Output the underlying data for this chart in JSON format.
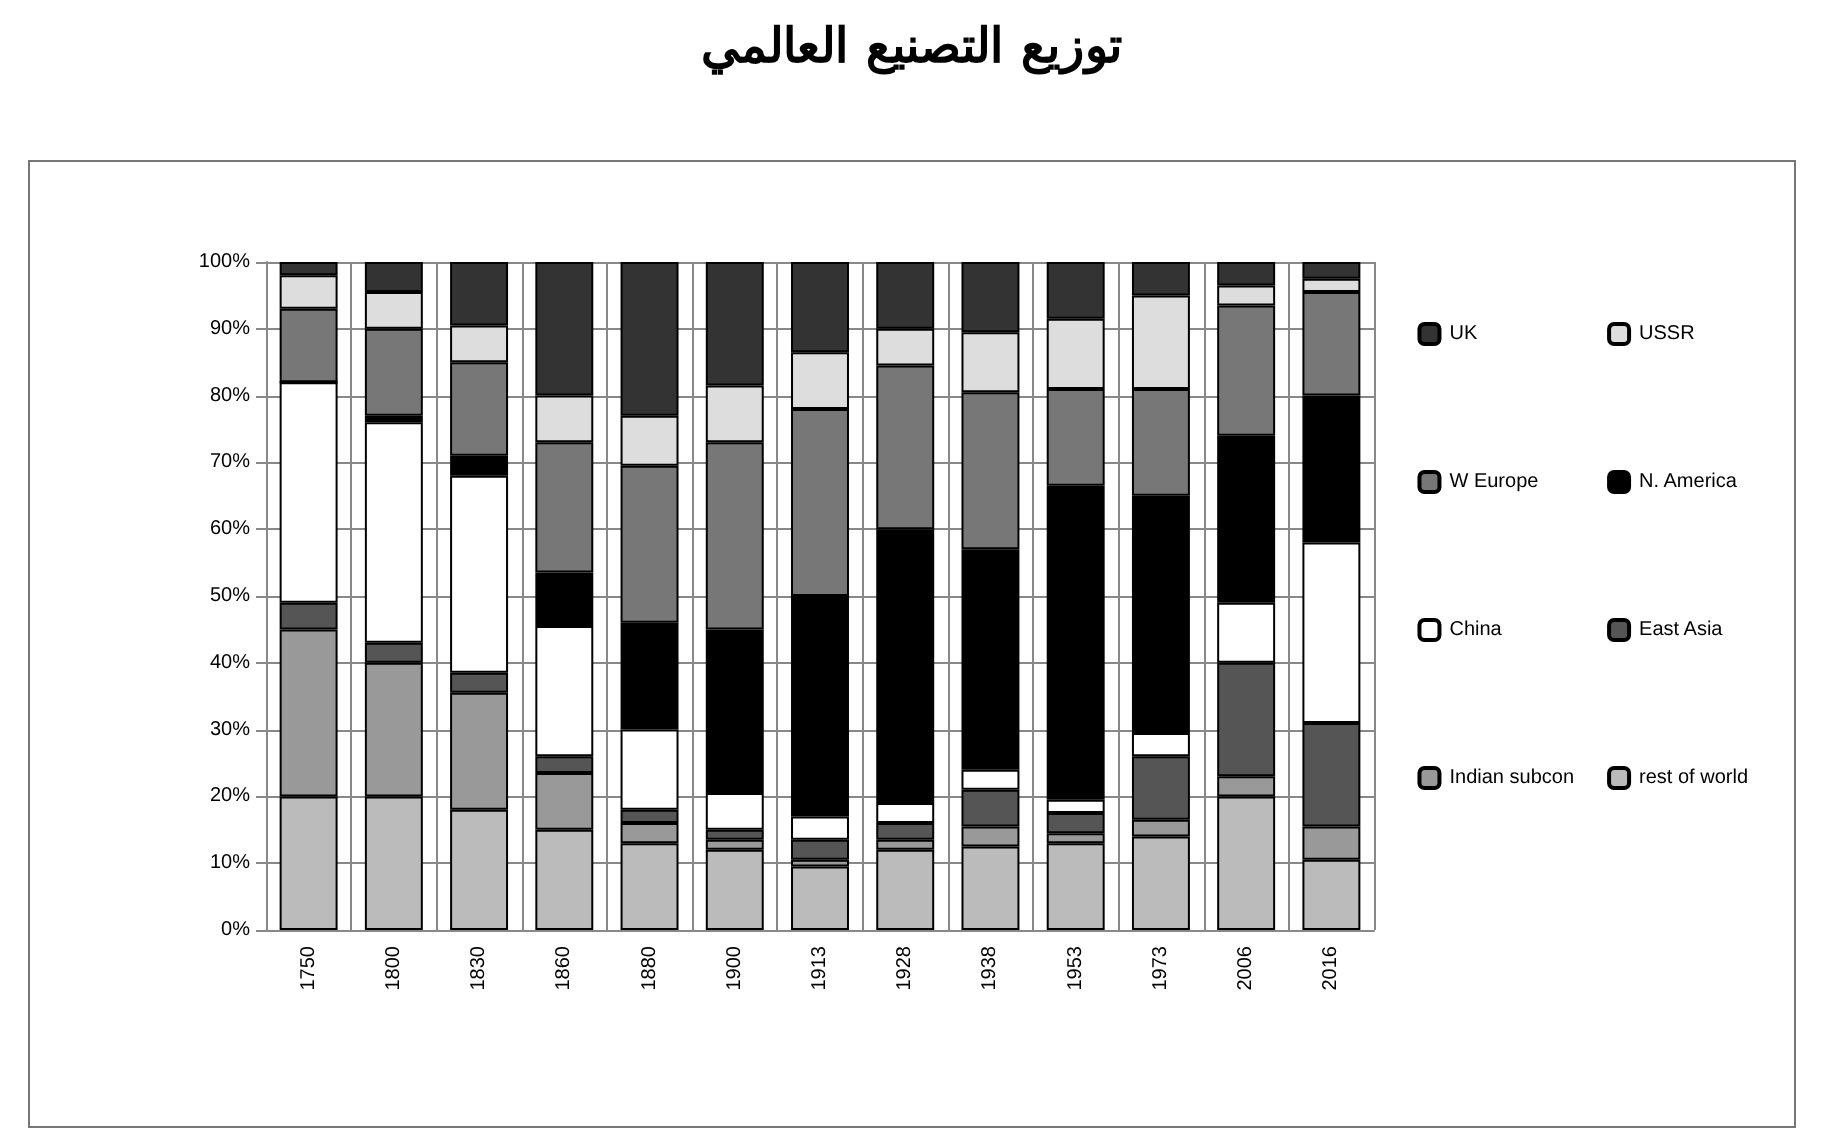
{
  "chart_data": {
    "type": "bar",
    "title": "توزيع التصنيع العالمي",
    "stacked": true,
    "grid": true,
    "legend": "right",
    "categories": [
      "1750",
      "1800",
      "1830",
      "1860",
      "1880",
      "1900",
      "1913",
      "1928",
      "1938",
      "1953",
      "1973",
      "2006",
      "2016"
    ],
    "ylim": [
      0,
      100
    ],
    "yticks": [
      {
        "value": 0,
        "label": "0%"
      },
      {
        "value": 10,
        "label": "10%"
      },
      {
        "value": 20,
        "label": "20%"
      },
      {
        "value": 30,
        "label": "30%"
      },
      {
        "value": 40,
        "label": "40%"
      },
      {
        "value": 50,
        "label": "50%"
      },
      {
        "value": 60,
        "label": "60%"
      },
      {
        "value": 70,
        "label": "70%"
      },
      {
        "value": 80,
        "label": "80%"
      },
      {
        "value": 90,
        "label": "90%"
      },
      {
        "value": 100,
        "label": "100%"
      }
    ],
    "series": [
      {
        "name": "rest of world",
        "color": "#bbbbbb",
        "values": [
          20,
          20,
          18,
          15,
          13,
          12,
          9.5,
          12,
          12.5,
          13,
          14,
          20,
          10.5
        ]
      },
      {
        "name": "Indian subcon",
        "color": "#999999",
        "values": [
          25,
          20,
          17.5,
          8.5,
          3,
          1.5,
          1,
          1.5,
          3,
          1.5,
          2.5,
          3,
          5
        ]
      },
      {
        "name": "East Asia",
        "color": "#555555",
        "values": [
          4,
          3,
          3,
          2.5,
          2,
          1.5,
          3,
          2.5,
          5.5,
          3,
          9.5,
          17,
          15.5
        ]
      },
      {
        "name": "China",
        "color": "#ffffff",
        "values": [
          33,
          33,
          29.5,
          19.5,
          12,
          5.5,
          3.5,
          3,
          3,
          2,
          3.5,
          9,
          27
        ]
      },
      {
        "name": "N. America",
        "color": "#000000",
        "values": [
          0,
          1,
          3,
          8,
          16,
          24.5,
          33,
          41,
          33,
          47,
          35.5,
          25,
          22
        ]
      },
      {
        "name": "W Europe",
        "color": "#777777",
        "values": [
          11,
          13,
          14,
          19.5,
          23.5,
          28,
          28,
          24.5,
          23.5,
          14.5,
          16,
          19.5,
          15.5
        ]
      },
      {
        "name": "USSR",
        "color": "#dddddd",
        "values": [
          5,
          5.5,
          5.5,
          7,
          7.5,
          8.5,
          8.5,
          5.5,
          9,
          10.5,
          14,
          3,
          2
        ]
      },
      {
        "name": "UK",
        "color": "#333333",
        "values": [
          2,
          4.5,
          9.5,
          20,
          23,
          18.5,
          13.5,
          10,
          10.5,
          8.5,
          5,
          3.5,
          2.5
        ]
      }
    ]
  }
}
